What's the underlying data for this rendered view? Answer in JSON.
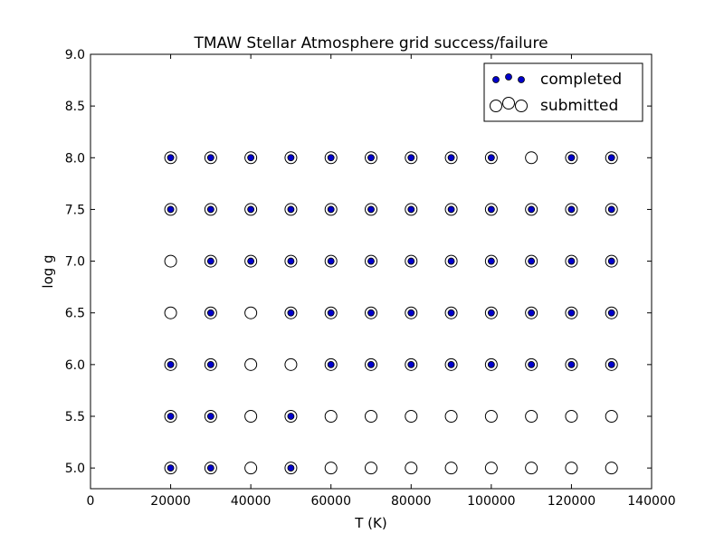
{
  "chart_data": {
    "type": "scatter",
    "title": "TMAW Stellar Atmosphere grid success/failure",
    "xlabel": "T (K)",
    "ylabel": "log g",
    "xlim": [
      0,
      140000
    ],
    "ylim": [
      4.8,
      9.0
    ],
    "x_ticks": [
      0,
      20000,
      40000,
      60000,
      80000,
      100000,
      120000,
      140000
    ],
    "x_tick_labels": [
      "0",
      "20000",
      "40000",
      "60000",
      "80000",
      "100000",
      "120000",
      "140000"
    ],
    "y_ticks": [
      5.0,
      5.5,
      6.0,
      6.5,
      7.0,
      7.5,
      8.0,
      8.5,
      9.0
    ],
    "y_tick_labels": [
      "5.0",
      "5.5",
      "6.0",
      "6.5",
      "7.0",
      "7.5",
      "8.0",
      "8.5",
      "9.0"
    ],
    "grid": false,
    "legend_position": "top-right",
    "colors": {
      "completed": "#0000cc",
      "submitted_face": "#ffffff",
      "edge": "#000000"
    },
    "series": [
      {
        "name": "completed",
        "marker": "filled-dot",
        "points": [
          [
            20000,
            8.0
          ],
          [
            30000,
            8.0
          ],
          [
            40000,
            8.0
          ],
          [
            50000,
            8.0
          ],
          [
            60000,
            8.0
          ],
          [
            70000,
            8.0
          ],
          [
            80000,
            8.0
          ],
          [
            90000,
            8.0
          ],
          [
            100000,
            8.0
          ],
          [
            120000,
            8.0
          ],
          [
            130000,
            8.0
          ],
          [
            20000,
            7.5
          ],
          [
            30000,
            7.5
          ],
          [
            40000,
            7.5
          ],
          [
            50000,
            7.5
          ],
          [
            60000,
            7.5
          ],
          [
            70000,
            7.5
          ],
          [
            80000,
            7.5
          ],
          [
            90000,
            7.5
          ],
          [
            100000,
            7.5
          ],
          [
            110000,
            7.5
          ],
          [
            120000,
            7.5
          ],
          [
            130000,
            7.5
          ],
          [
            30000,
            7.0
          ],
          [
            40000,
            7.0
          ],
          [
            50000,
            7.0
          ],
          [
            60000,
            7.0
          ],
          [
            70000,
            7.0
          ],
          [
            80000,
            7.0
          ],
          [
            90000,
            7.0
          ],
          [
            100000,
            7.0
          ],
          [
            110000,
            7.0
          ],
          [
            120000,
            7.0
          ],
          [
            130000,
            7.0
          ],
          [
            30000,
            6.5
          ],
          [
            50000,
            6.5
          ],
          [
            60000,
            6.5
          ],
          [
            70000,
            6.5
          ],
          [
            80000,
            6.5
          ],
          [
            90000,
            6.5
          ],
          [
            100000,
            6.5
          ],
          [
            110000,
            6.5
          ],
          [
            120000,
            6.5
          ],
          [
            130000,
            6.5
          ],
          [
            20000,
            6.0
          ],
          [
            30000,
            6.0
          ],
          [
            60000,
            6.0
          ],
          [
            70000,
            6.0
          ],
          [
            80000,
            6.0
          ],
          [
            90000,
            6.0
          ],
          [
            100000,
            6.0
          ],
          [
            110000,
            6.0
          ],
          [
            120000,
            6.0
          ],
          [
            130000,
            6.0
          ],
          [
            20000,
            5.5
          ],
          [
            30000,
            5.5
          ],
          [
            50000,
            5.5
          ],
          [
            20000,
            5.0
          ],
          [
            30000,
            5.0
          ],
          [
            50000,
            5.0
          ]
        ]
      },
      {
        "name": "submitted",
        "marker": "open-circle",
        "x_grid": [
          20000,
          30000,
          40000,
          50000,
          60000,
          70000,
          80000,
          90000,
          100000,
          110000,
          120000,
          130000
        ],
        "y_grid": [
          5.0,
          5.5,
          6.0,
          6.5,
          7.0,
          7.5,
          8.0
        ]
      }
    ],
    "legend": [
      "completed",
      "submitted"
    ]
  }
}
